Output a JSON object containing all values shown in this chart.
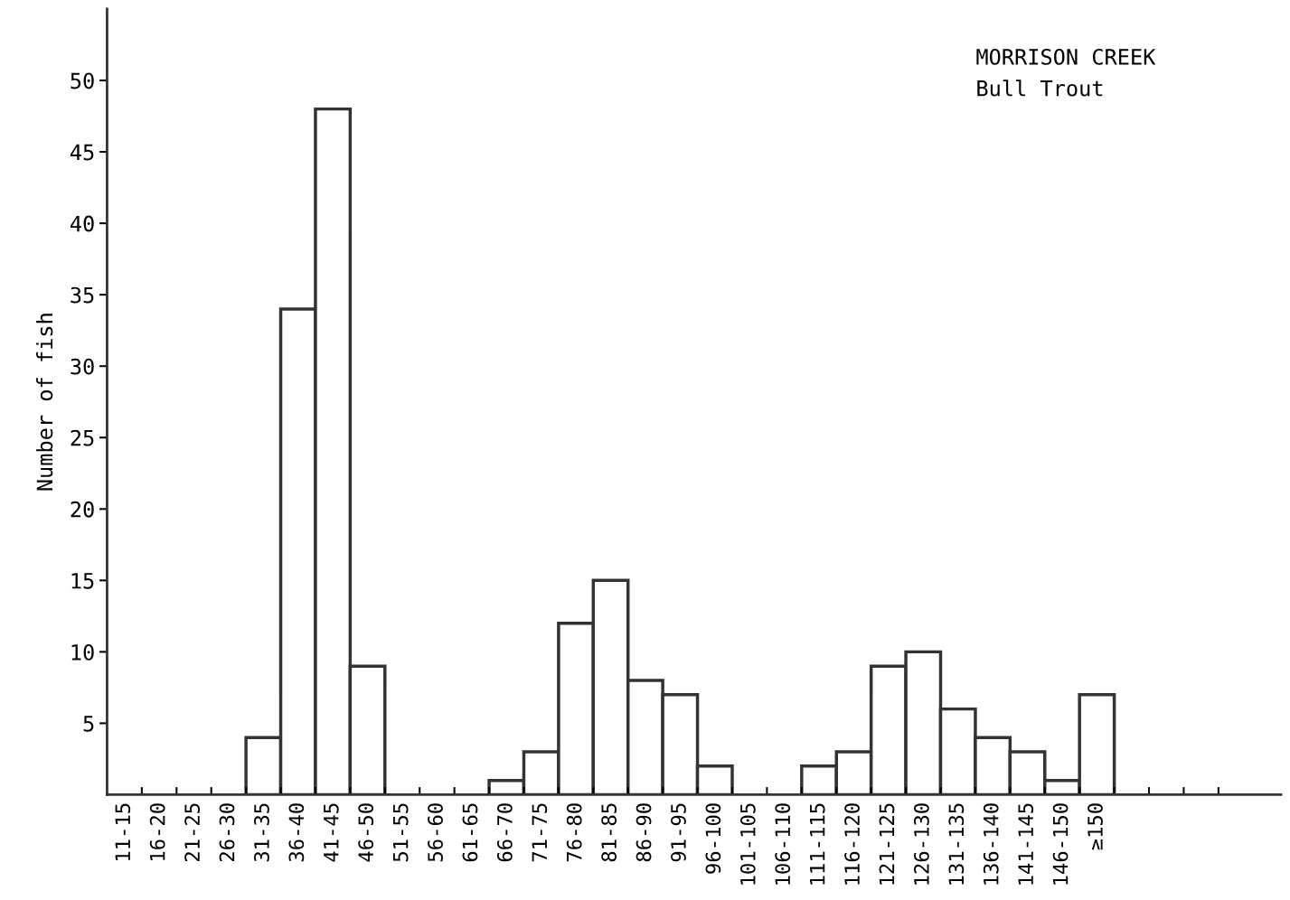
{
  "chart_data": {
    "type": "bar",
    "categories": [
      "11-15",
      "16-20",
      "21-25",
      "26-30",
      "31-35",
      "36-40",
      "41-45",
      "46-50",
      "51-55",
      "56-60",
      "61-65",
      "66-70",
      "71-75",
      "76-80",
      "81-85",
      "86-90",
      "91-95",
      "96-100",
      "101-105",
      "106-110",
      "111-115",
      "116-120",
      "121-125",
      "126-130",
      "131-135",
      "136-140",
      "141-145",
      "146-150",
      "≥150",
      null,
      null,
      null,
      null
    ],
    "values": [
      0,
      0,
      0,
      0,
      4,
      34,
      48,
      9,
      0,
      0,
      0,
      1,
      3,
      12,
      15,
      8,
      7,
      2,
      0,
      0,
      2,
      3,
      9,
      10,
      6,
      4,
      3,
      1,
      7,
      null,
      null,
      null,
      null
    ],
    "color": "#ffffff",
    "ylabel": "Number of fish",
    "annotations": [
      "MORRISON CREEK",
      "Bull Trout"
    ],
    "ylim": [
      0,
      55
    ],
    "yticks": [
      5,
      10,
      15,
      20,
      25,
      30,
      35,
      40,
      45,
      50
    ],
    "grid": false,
    "legend": false
  }
}
